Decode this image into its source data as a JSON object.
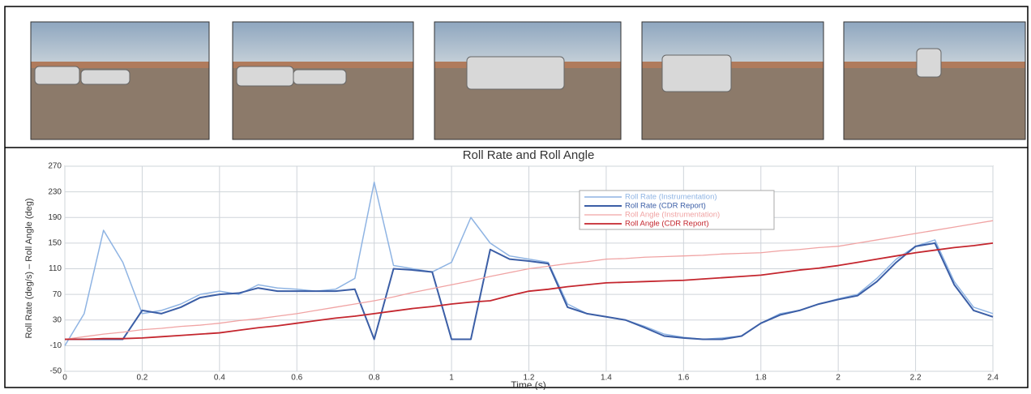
{
  "chart_data": {
    "type": "line",
    "title": "Roll Rate and Roll Angle",
    "xlabel": "Time (s)",
    "ylabel": "Roll Rate (deg/s) – Roll Angle (deg)",
    "x": [
      0,
      0.05,
      0.1,
      0.15,
      0.2,
      0.25,
      0.3,
      0.35,
      0.4,
      0.45,
      0.5,
      0.55,
      0.6,
      0.65,
      0.7,
      0.75,
      0.8,
      0.85,
      0.9,
      0.95,
      1.0,
      1.05,
      1.1,
      1.15,
      1.2,
      1.25,
      1.3,
      1.35,
      1.4,
      1.45,
      1.5,
      1.55,
      1.6,
      1.65,
      1.7,
      1.75,
      1.8,
      1.85,
      1.9,
      1.95,
      2.0,
      2.05,
      2.1,
      2.15,
      2.2,
      2.25,
      2.3,
      2.35,
      2.4
    ],
    "series": [
      {
        "name": "Roll Rate (Instrumentation)",
        "color": "#8fb4e3",
        "width": 1.5,
        "values": [
          -10,
          40,
          170,
          120,
          40,
          45,
          55,
          70,
          75,
          70,
          85,
          80,
          78,
          75,
          78,
          95,
          245,
          115,
          110,
          105,
          120,
          190,
          150,
          130,
          125,
          120,
          55,
          40,
          35,
          30,
          20,
          8,
          3,
          0,
          2,
          5,
          25,
          40,
          45,
          55,
          63,
          70,
          95,
          125,
          145,
          155,
          90,
          50,
          40
        ]
      },
      {
        "name": "Roll Rate (CDR Report)",
        "color": "#3b5ea6",
        "width": 2,
        "values": [
          0,
          0,
          0,
          0,
          45,
          40,
          50,
          65,
          70,
          72,
          80,
          75,
          75,
          75,
          75,
          78,
          0,
          110,
          108,
          105,
          0,
          0,
          140,
          125,
          122,
          118,
          50,
          40,
          35,
          30,
          18,
          5,
          2,
          0,
          0,
          5,
          25,
          38,
          45,
          55,
          62,
          68,
          90,
          120,
          145,
          150,
          85,
          45,
          35
        ]
      },
      {
        "name": "Roll Angle (Instrumentation)",
        "color": "#f0a3a3",
        "width": 1.3,
        "values": [
          0,
          4,
          8,
          11,
          15,
          17,
          20,
          22,
          25,
          29,
          32,
          36,
          40,
          45,
          50,
          55,
          60,
          66,
          73,
          79,
          85,
          91,
          98,
          104,
          110,
          114,
          118,
          121,
          125,
          126,
          128,
          129,
          130,
          131,
          133,
          134,
          135,
          138,
          140,
          143,
          145,
          150,
          155,
          160,
          165,
          170,
          175,
          180,
          185
        ]
      },
      {
        "name": "Roll Angle (CDR Report)",
        "color": "#c4262e",
        "width": 1.8,
        "values": [
          0,
          0,
          1,
          1,
          2,
          4,
          6,
          8,
          10,
          14,
          18,
          21,
          25,
          29,
          33,
          36,
          40,
          44,
          48,
          51,
          55,
          58,
          60,
          68,
          75,
          78,
          82,
          85,
          88,
          89,
          90,
          91,
          92,
          94,
          96,
          98,
          100,
          104,
          108,
          111,
          115,
          120,
          125,
          130,
          135,
          139,
          143,
          146,
          150
        ]
      }
    ],
    "xlim": [
      0,
      2.4
    ],
    "xticks": [
      0,
      0.2,
      0.4,
      0.6,
      0.8,
      1,
      1.2,
      1.4,
      1.6,
      1.8,
      2,
      2.2,
      2.4
    ],
    "ylim": [
      -50,
      270
    ],
    "yticks": [
      -50,
      -10,
      30,
      70,
      110,
      150,
      190,
      230,
      270
    ],
    "grid": true,
    "legend": "upper center"
  }
}
